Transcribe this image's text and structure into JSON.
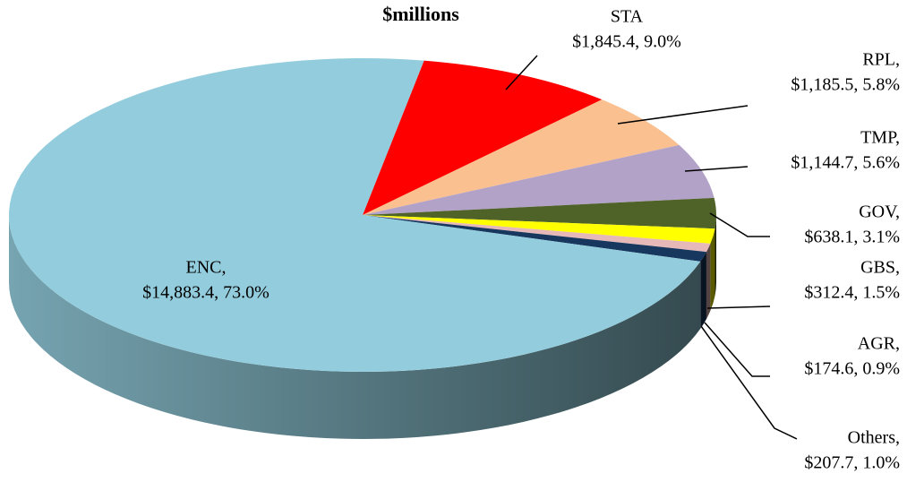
{
  "chart_data": {
    "type": "pie",
    "title": "$millions",
    "categories": [
      "STA",
      "RPL,",
      "TMP,",
      "GOV,",
      "GBS,",
      "AGR,",
      "Others,",
      "ENC,"
    ],
    "values": [
      1845.4,
      1185.5,
      1144.7,
      638.1,
      312.4,
      174.6,
      207.7,
      14883.4
    ],
    "value_labels": [
      "$1,845.4, 9.0%",
      "$1,185.5, 5.8%",
      "$1,144.7, 5.6%",
      "$638.1, 3.1%",
      "$312.4, 1.5%",
      "$174.6, 0.9%",
      "$207.7, 1.0%",
      "$14,883.4, 73.0%"
    ],
    "colors": [
      "#ff0000",
      "#fac090",
      "#b3a2c7",
      "#4f6228",
      "#ffff00",
      "#e6b9b8",
      "#17375e",
      "#93cddd"
    ]
  }
}
